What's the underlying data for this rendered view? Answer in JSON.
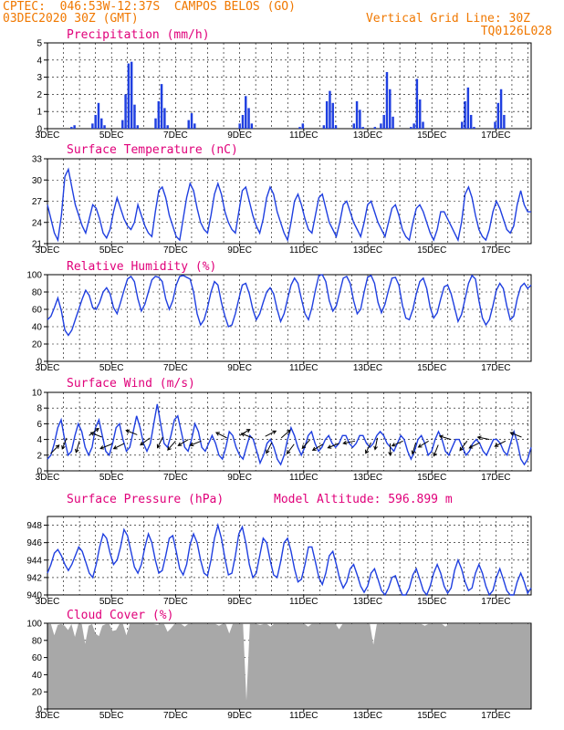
{
  "header": {
    "station": "CPTEC:  046:53W-12:37S  CAMPOS BELOS (GO)",
    "run": "03DEC2020 30Z (GMT)",
    "vgrid": "Vertical Grid Line: 30Z",
    "code": "TQ0126L028"
  },
  "colors": {
    "header": "#f07800",
    "title": "#e0007a",
    "line": "#1f3fe0",
    "cloud": "#a8a8a8",
    "arrow": "#000000"
  },
  "x_labels": [
    "3DEC",
    "5DEC",
    "7DEC",
    "9DEC",
    "11DEC",
    "13DEC",
    "15DEC",
    "17DEC"
  ],
  "chart_data": [
    {
      "type": "bar",
      "title": "Precipitation (mm/h)",
      "ylim": [
        0,
        5
      ],
      "yticks": [
        0,
        1,
        2,
        3,
        4,
        5
      ],
      "x_start_day": 3,
      "x_end_day": 18.1,
      "step_hours": 3,
      "x_labels": [
        "3DEC",
        "5DEC",
        "7DEC",
        "9DEC",
        "11DEC",
        "13DEC",
        "15DEC",
        "17DEC"
      ],
      "grid": true,
      "values": [
        0,
        0,
        0,
        0,
        0,
        0,
        0,
        0,
        0.1,
        0.2,
        0,
        0,
        0,
        0,
        0,
        0.3,
        0.8,
        1.5,
        0.6,
        0.2,
        0,
        0,
        0,
        0,
        0,
        0.5,
        2.0,
        3.8,
        3.9,
        1.4,
        0.2,
        0,
        0,
        0,
        0,
        0,
        0.6,
        1.6,
        2.6,
        1.2,
        0.2,
        0,
        0,
        0,
        0,
        0,
        0,
        0.5,
        0.9,
        0.3,
        0,
        0,
        0,
        0,
        0,
        0,
        0,
        0,
        0,
        0,
        0,
        0,
        0,
        0,
        0.3,
        0.8,
        1.9,
        1.2,
        0.3,
        0,
        0,
        0,
        0,
        0,
        0,
        0,
        0,
        0,
        0,
        0,
        0,
        0,
        0,
        0,
        0.1,
        0.3,
        0,
        0,
        0,
        0,
        0,
        0,
        0.2,
        1.6,
        2.2,
        1.5,
        0.2,
        0,
        0,
        0,
        0,
        0,
        0.3,
        1.6,
        1.1,
        0.1,
        0,
        0,
        0,
        0.1,
        0,
        0.3,
        0.8,
        3.3,
        2.3,
        0.7,
        0,
        0,
        0,
        0,
        0,
        0.1,
        0.3,
        2.9,
        1.7,
        0.4,
        0,
        0,
        0,
        0,
        0,
        0,
        0,
        0,
        0,
        0,
        0,
        0,
        0.4,
        1.6,
        2.4,
        0.8,
        0.1,
        0,
        0,
        0,
        0,
        0,
        0,
        0.4,
        1.5,
        2.3,
        0.8,
        0,
        0,
        0,
        0,
        0,
        0,
        0,
        0,
        0
      ]
    },
    {
      "type": "line",
      "title": "Surface Temperature (nC)",
      "ylim": [
        21,
        33
      ],
      "yticks": [
        21,
        24,
        27,
        30,
        33
      ],
      "x_labels": [
        "3DEC",
        "5DEC",
        "7DEC",
        "9DEC",
        "11DEC",
        "13DEC",
        "15DEC",
        "17DEC"
      ],
      "grid": true,
      "values": [
        26.5,
        24.5,
        22.5,
        21.5,
        25.0,
        30.5,
        31.5,
        29.0,
        26.5,
        25.0,
        23.5,
        22.5,
        24.5,
        26.5,
        26.0,
        24.5,
        22.5,
        21.8,
        23.0,
        25.5,
        27.5,
        26.0,
        24.5,
        23.5,
        23.0,
        24.0,
        26.5,
        25.0,
        23.5,
        22.5,
        22.0,
        25.5,
        28.5,
        29.0,
        27.5,
        25.0,
        23.5,
        22.0,
        21.5,
        24.5,
        27.5,
        29.5,
        28.5,
        26.0,
        24.0,
        23.0,
        22.5,
        25.0,
        28.0,
        29.5,
        28.0,
        25.5,
        24.0,
        23.0,
        22.5,
        25.5,
        28.5,
        29.0,
        27.0,
        25.0,
        23.5,
        22.5,
        24.5,
        27.5,
        29.0,
        28.0,
        25.5,
        24.0,
        22.5,
        21.5,
        24.0,
        27.0,
        28.0,
        26.5,
        24.5,
        23.0,
        22.5,
        25.0,
        27.5,
        28.0,
        26.0,
        24.0,
        23.0,
        22.0,
        24.0,
        26.5,
        27.0,
        25.5,
        24.0,
        23.0,
        22.0,
        24.0,
        26.5,
        27.0,
        25.5,
        24.0,
        23.0,
        22.0,
        24.0,
        26.0,
        26.5,
        25.0,
        23.0,
        22.0,
        21.5,
        24.0,
        26.0,
        26.5,
        25.5,
        24.0,
        22.5,
        21.5,
        23.0,
        25.5,
        25.5,
        24.5,
        23.5,
        22.5,
        21.5,
        24.0,
        28.0,
        29.0,
        27.5,
        25.0,
        23.0,
        22.0,
        21.5,
        23.0,
        25.5,
        27.0,
        26.0,
        24.5,
        23.0,
        22.5,
        23.5,
        26.5,
        28.5,
        26.5,
        25.5,
        25.5
      ]
    },
    {
      "type": "line",
      "title": "Relative Humidity (%)",
      "ylim": [
        0,
        100
      ],
      "yticks": [
        0,
        20,
        40,
        60,
        80,
        100
      ],
      "x_labels": [
        "3DEC",
        "5DEC",
        "7DEC",
        "9DEC",
        "11DEC",
        "13DEC",
        "15DEC",
        "17DEC"
      ],
      "grid": true,
      "values": [
        48,
        52,
        62,
        73,
        58,
        36,
        30,
        36,
        48,
        60,
        72,
        82,
        76,
        62,
        60,
        68,
        80,
        85,
        78,
        62,
        55,
        68,
        82,
        95,
        98,
        92,
        72,
        58,
        66,
        80,
        94,
        98,
        97,
        92,
        72,
        60,
        70,
        88,
        98,
        99,
        97,
        95,
        80,
        55,
        42,
        48,
        62,
        80,
        92,
        88,
        68,
        52,
        40,
        42,
        55,
        72,
        88,
        90,
        78,
        60,
        48,
        55,
        68,
        80,
        85,
        78,
        60,
        46,
        55,
        72,
        88,
        96,
        90,
        72,
        55,
        48,
        62,
        82,
        99,
        100,
        92,
        70,
        58,
        64,
        80,
        96,
        98,
        90,
        70,
        55,
        60,
        80,
        97,
        99,
        90,
        68,
        56,
        66,
        82,
        96,
        97,
        88,
        65,
        50,
        48,
        60,
        78,
        92,
        96,
        84,
        62,
        50,
        56,
        72,
        86,
        88,
        78,
        62,
        46,
        54,
        72,
        90,
        99,
        95,
        70,
        50,
        42,
        48,
        64,
        82,
        90,
        84,
        64,
        48,
        52,
        72,
        86,
        90,
        84,
        88
      ]
    },
    {
      "type": "line",
      "title": "Surface Wind (m/s)",
      "ylim": [
        0,
        10
      ],
      "yticks": [
        0,
        2,
        4,
        6,
        8,
        10
      ],
      "x_labels": [
        "3DEC",
        "5DEC",
        "7DEC",
        "9DEC",
        "11DEC",
        "13DEC",
        "15DEC",
        "17DEC"
      ],
      "grid": true,
      "values": [
        1.5,
        2.0,
        3.5,
        5.5,
        6.5,
        4.0,
        2.0,
        2.5,
        4.5,
        6.0,
        5.0,
        3.0,
        2.0,
        3.0,
        5.5,
        6.5,
        4.5,
        2.5,
        2.0,
        3.5,
        5.5,
        6.0,
        4.0,
        2.5,
        3.0,
        5.0,
        7.0,
        5.5,
        3.5,
        2.5,
        3.5,
        6.0,
        8.5,
        6.0,
        3.5,
        3.0,
        4.5,
        6.5,
        7.0,
        5.0,
        3.0,
        2.5,
        4.0,
        6.0,
        5.0,
        3.0,
        2.5,
        3.5,
        4.5,
        3.5,
        2.0,
        1.5,
        3.0,
        5.0,
        4.5,
        3.0,
        2.0,
        1.5,
        3.0,
        4.5,
        4.0,
        2.5,
        1.0,
        2.0,
        3.5,
        4.0,
        3.0,
        1.5,
        0.8,
        2.0,
        4.0,
        5.5,
        4.5,
        3.0,
        2.0,
        3.0,
        4.5,
        5.0,
        3.5,
        2.5,
        3.0,
        4.0,
        4.5,
        3.5,
        3.0,
        3.5,
        4.5,
        4.5,
        3.5,
        3.0,
        3.5,
        4.5,
        4.5,
        3.5,
        3.0,
        3.5,
        4.5,
        5.0,
        4.5,
        3.5,
        3.0,
        2.5,
        3.5,
        4.5,
        4.0,
        2.5,
        1.5,
        2.5,
        4.0,
        4.5,
        3.5,
        2.0,
        2.5,
        4.0,
        5.0,
        4.0,
        2.5,
        2.0,
        3.0,
        4.0,
        4.0,
        3.0,
        2.0,
        2.5,
        3.5,
        4.0,
        3.5,
        2.5,
        2.0,
        3.0,
        4.0,
        4.0,
        3.5,
        2.5,
        2.0,
        3.5,
        5.0,
        3.5,
        1.5,
        0.8,
        1.5,
        3.0
      ],
      "arrows": [
        {
          "day": 3.1,
          "v": 2.2,
          "u_dir": 1.0,
          "v_dir": 1.0
        },
        {
          "day": 3.6,
          "v": 4.2,
          "u_dir": -0.4,
          "v_dir": -1.0
        },
        {
          "day": 4.0,
          "v": 3.8,
          "u_dir": -0.3,
          "v_dir": -1.0
        },
        {
          "day": 4.3,
          "v": 4.5,
          "u_dir": 0.8,
          "v_dir": 0.6
        },
        {
          "day": 4.7,
          "v": 4.3,
          "u_dir": -1.0,
          "v_dir": 0.4
        },
        {
          "day": 5.0,
          "v": 3.4,
          "u_dir": -1.0,
          "v_dir": -0.4
        },
        {
          "day": 5.4,
          "v": 3.5,
          "u_dir": -1.0,
          "v_dir": -0.5
        },
        {
          "day": 5.8,
          "v": 4.6,
          "u_dir": -1.0,
          "v_dir": 0.4
        },
        {
          "day": 6.2,
          "v": 4.2,
          "u_dir": -0.8,
          "v_dir": -0.6
        },
        {
          "day": 6.6,
          "v": 4.3,
          "u_dir": -0.5,
          "v_dir": -1.0
        },
        {
          "day": 7.0,
          "v": 3.8,
          "u_dir": -0.7,
          "v_dir": -0.8
        },
        {
          "day": 7.4,
          "v": 4.0,
          "u_dir": -1.0,
          "v_dir": -0.6
        },
        {
          "day": 7.8,
          "v": 3.8,
          "u_dir": -1.0,
          "v_dir": -0.4
        },
        {
          "day": 8.6,
          "v": 4.2,
          "u_dir": -1.0,
          "v_dir": 0.5
        },
        {
          "day": 9.0,
          "v": 4.5,
          "u_dir": 1.0,
          "v_dir": 0.6
        },
        {
          "day": 9.4,
          "v": 4.2,
          "u_dir": -1.0,
          "v_dir": 0.4
        },
        {
          "day": 9.8,
          "v": 4.4,
          "u_dir": 1.0,
          "v_dir": 0.5
        },
        {
          "day": 10.0,
          "v": 3.6,
          "u_dir": -0.5,
          "v_dir": -1.0
        },
        {
          "day": 10.3,
          "v": 4.2,
          "u_dir": 0.8,
          "v_dir": 0.7
        },
        {
          "day": 10.7,
          "v": 3.4,
          "u_dir": -0.6,
          "v_dir": -0.8
        },
        {
          "day": 11.2,
          "v": 4.0,
          "u_dir": -0.7,
          "v_dir": -0.8
        },
        {
          "day": 11.6,
          "v": 3.4,
          "u_dir": -1.0,
          "v_dir": -0.6
        },
        {
          "day": 12.1,
          "v": 3.5,
          "u_dir": -1.0,
          "v_dir": -0.4
        },
        {
          "day": 12.6,
          "v": 3.8,
          "u_dir": -1.0,
          "v_dir": -0.2
        },
        {
          "day": 13.1,
          "v": 3.6,
          "u_dir": -0.5,
          "v_dir": -1.0
        },
        {
          "day": 13.3,
          "v": 4.2,
          "u_dir": -0.2,
          "v_dir": -1.0
        },
        {
          "day": 13.7,
          "v": 3.5,
          "u_dir": 0.0,
          "v_dir": -1.0
        },
        {
          "day": 14.1,
          "v": 3.8,
          "u_dir": -0.9,
          "v_dir": -0.4
        },
        {
          "day": 14.5,
          "v": 3.6,
          "u_dir": -0.3,
          "v_dir": -1.0
        },
        {
          "day": 14.9,
          "v": 3.8,
          "u_dir": -1.0,
          "v_dir": -0.6
        },
        {
          "day": 15.2,
          "v": 3.3,
          "u_dir": -0.4,
          "v_dir": -1.0
        },
        {
          "day": 15.6,
          "v": 4.0,
          "u_dir": -1.0,
          "v_dir": 0.3
        },
        {
          "day": 16.1,
          "v": 3.8,
          "u_dir": -0.6,
          "v_dir": -0.8
        },
        {
          "day": 16.5,
          "v": 3.6,
          "u_dir": -1.0,
          "v_dir": -0.5
        },
        {
          "day": 16.8,
          "v": 4.0,
          "u_dir": -1.0,
          "v_dir": 0.2
        },
        {
          "day": 17.3,
          "v": 3.8,
          "u_dir": -1.0,
          "v_dir": -0.5
        },
        {
          "day": 17.8,
          "v": 4.3,
          "u_dir": -1.0,
          "v_dir": 0.4
        }
      ]
    },
    {
      "type": "line",
      "title": "Surface Pressure (hPa)",
      "annotation": "Model Altitude: 596.899 m",
      "ylim": [
        940,
        949
      ],
      "yticks": [
        940,
        942,
        944,
        946,
        948
      ],
      "x_labels": [
        "3DEC",
        "5DEC",
        "7DEC",
        "9DEC",
        "11DEC",
        "13DEC",
        "15DEC",
        "17DEC"
      ],
      "grid": true,
      "values": [
        942.5,
        943.5,
        944.8,
        945.2,
        944.5,
        943.5,
        942.8,
        943.5,
        944.5,
        945.5,
        945.0,
        943.8,
        942.5,
        942.0,
        943.5,
        945.5,
        947.0,
        946.5,
        944.8,
        943.5,
        944.0,
        945.5,
        947.5,
        946.8,
        945.0,
        943.2,
        942.5,
        943.5,
        945.5,
        947.0,
        946.0,
        944.0,
        942.5,
        942.8,
        944.5,
        946.5,
        946.8,
        945.0,
        943.0,
        942.3,
        943.5,
        945.8,
        947.0,
        946.0,
        944.0,
        942.5,
        942.2,
        944.0,
        946.5,
        948.0,
        946.5,
        944.2,
        942.3,
        942.5,
        944.5,
        947.0,
        947.8,
        946.0,
        943.5,
        942.0,
        942.5,
        944.5,
        946.5,
        946.0,
        944.0,
        942.3,
        942.0,
        943.8,
        946.0,
        946.5,
        945.0,
        943.0,
        941.5,
        941.8,
        943.5,
        945.5,
        945.5,
        943.8,
        942.0,
        941.2,
        942.5,
        944.5,
        945.0,
        943.5,
        941.8,
        940.8,
        941.5,
        943.0,
        943.5,
        942.3,
        941.0,
        940.3,
        941.0,
        942.5,
        943.0,
        941.8,
        940.5,
        940.0,
        940.8,
        942.0,
        942.2,
        941.0,
        940.0,
        939.8,
        940.8,
        942.3,
        943.0,
        941.8,
        940.5,
        940.0,
        941.0,
        942.5,
        943.5,
        942.5,
        941.0,
        940.2,
        940.8,
        942.8,
        944.0,
        943.0,
        941.5,
        940.5,
        940.8,
        942.5,
        943.5,
        942.5,
        941.0,
        940.0,
        940.5,
        942.0,
        943.0,
        941.8,
        940.5,
        939.8,
        940.0,
        941.5,
        942.5,
        941.5,
        940.2,
        940.8
      ]
    },
    {
      "type": "area",
      "title": "Cloud Cover (%)",
      "ylim": [
        0,
        100
      ],
      "yticks": [
        0,
        20,
        40,
        60,
        80,
        100
      ],
      "x_labels": [
        "3DEC",
        "5DEC",
        "7DEC",
        "9DEC",
        "11DEC",
        "13DEC",
        "15DEC",
        "17DEC"
      ],
      "grid": true,
      "values": [
        99,
        99,
        86,
        98,
        99,
        97,
        92,
        99,
        84,
        99,
        99,
        76,
        97,
        99,
        88,
        85,
        97,
        99,
        99,
        91,
        92,
        99,
        99,
        86,
        99,
        99,
        99,
        99,
        99,
        99,
        99,
        99,
        98,
        99,
        99,
        90,
        94,
        99,
        99,
        99,
        96,
        99,
        99,
        99,
        99,
        99,
        99,
        99,
        99,
        99,
        97,
        99,
        99,
        88,
        99,
        99,
        99,
        99,
        10,
        99,
        99,
        99,
        98,
        99,
        99,
        96,
        99,
        99,
        99,
        99,
        99,
        99,
        99,
        99,
        99,
        99,
        96,
        99,
        99,
        99,
        99,
        99,
        99,
        99,
        99,
        93,
        99,
        99,
        99,
        99,
        99,
        99,
        99,
        99,
        99,
        75,
        99,
        99,
        99,
        99,
        99,
        99,
        99,
        99,
        99,
        99,
        99,
        99,
        99,
        99,
        97,
        99,
        99,
        99,
        99,
        99,
        96,
        99,
        99,
        99,
        99,
        99,
        99,
        99,
        99,
        99,
        99,
        99,
        99,
        99,
        99,
        99,
        99,
        99,
        99,
        99,
        99,
        99,
        99,
        99,
        99,
        99
      ]
    }
  ]
}
